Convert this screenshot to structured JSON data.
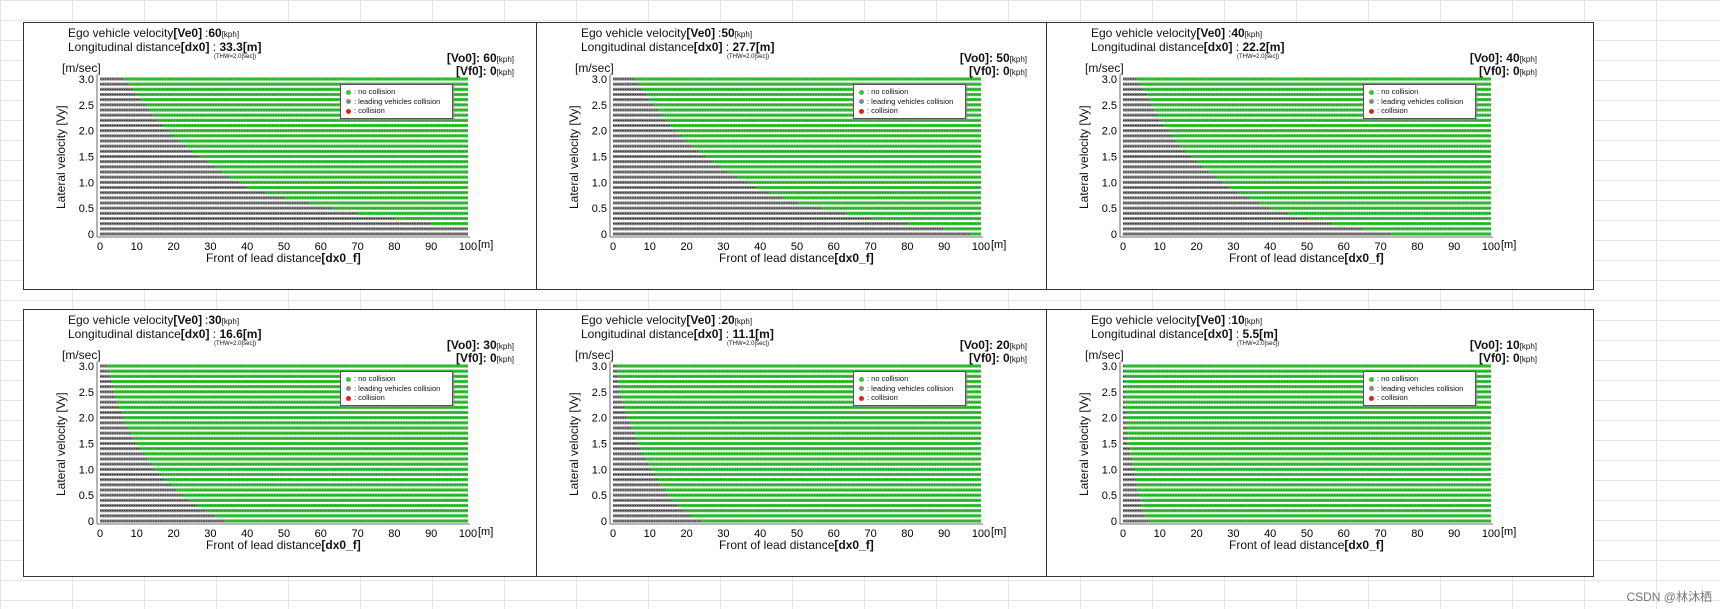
{
  "colors": {
    "no_collision": "#3cc43c",
    "leading": "#8a8a8a",
    "collision": "#d8261e",
    "row_shade": "#2b2b2b"
  },
  "labels": {
    "ego_velocity": "Ego vehicle velocity",
    "ego_key": "[Ve0]",
    "long_distance": "Longitudinal distance",
    "long_key": "[dx0]",
    "kph": "[kph]",
    "meter": "[m]",
    "thw": "(THW=2.0[sec])",
    "vo0_key": "[Vo0]",
    "vf0_key": "[Vf0]",
    "colon": ":",
    "y_unit": "[m/sec]",
    "y_axis": "Lateral velocity [Vy]",
    "x_axis": "Front of lead distance",
    "x_key": "[dx0_f]",
    "x_unit": "[m]",
    "legend_no": ": no collision",
    "legend_leading": ": leading vehicles collision",
    "legend_collision": ": collision"
  },
  "watermark": "CSDN @林沐栖",
  "chart_data": [
    {
      "type": "scatter",
      "ve0": "60",
      "dx0": "33.3",
      "vo0": "60",
      "vf0": "0",
      "xlim": [
        0,
        100
      ],
      "ylim": [
        0,
        3.0
      ],
      "xticks": [
        0,
        10,
        20,
        30,
        40,
        50,
        60,
        70,
        80,
        90,
        100
      ],
      "yticks": [
        "0",
        "0.5",
        "1.0",
        "1.5",
        "2.0",
        "2.5",
        "3.0"
      ],
      "boundary": [
        [
          6.5,
          3.0
        ],
        [
          10,
          2.7
        ],
        [
          15,
          2.25
        ],
        [
          20,
          1.9
        ],
        [
          25,
          1.6
        ],
        [
          30,
          1.35
        ],
        [
          35,
          1.1
        ],
        [
          40,
          0.9
        ],
        [
          50,
          0.7
        ],
        [
          60,
          0.55
        ],
        [
          70,
          0.4
        ],
        [
          80,
          0.3
        ],
        [
          90,
          0.2
        ],
        [
          100,
          0.2
        ]
      ]
    },
    {
      "type": "scatter",
      "ve0": "50",
      "dx0": "27.7",
      "vo0": "50",
      "vf0": "0",
      "xlim": [
        0,
        100
      ],
      "ylim": [
        0,
        3.0
      ],
      "xticks": [
        0,
        10,
        20,
        30,
        40,
        50,
        60,
        70,
        80,
        90,
        100
      ],
      "yticks": [
        "0",
        "0.5",
        "1.0",
        "1.5",
        "2.0",
        "2.5",
        "3.0"
      ],
      "boundary": [
        [
          6,
          3.0
        ],
        [
          10,
          2.6
        ],
        [
          15,
          2.15
        ],
        [
          20,
          1.8
        ],
        [
          25,
          1.5
        ],
        [
          30,
          1.25
        ],
        [
          35,
          1.05
        ],
        [
          40,
          0.85
        ],
        [
          50,
          0.6
        ],
        [
          60,
          0.45
        ],
        [
          70,
          0.3
        ],
        [
          80,
          0.2
        ],
        [
          90,
          0.1
        ],
        [
          97,
          0
        ]
      ]
    },
    {
      "type": "scatter",
      "ve0": "40",
      "dx0": "22.2",
      "vo0": "40",
      "vf0": "0",
      "xlim": [
        0,
        100
      ],
      "ylim": [
        0,
        3.0
      ],
      "xticks": [
        0,
        10,
        20,
        30,
        40,
        50,
        60,
        70,
        80,
        90,
        100
      ],
      "yticks": [
        "0",
        "0.5",
        "1.0",
        "1.5",
        "2.0",
        "2.5",
        "3.0"
      ],
      "boundary": [
        [
          4,
          3.0
        ],
        [
          7,
          2.6
        ],
        [
          10,
          2.2
        ],
        [
          15,
          1.75
        ],
        [
          20,
          1.4
        ],
        [
          25,
          1.1
        ],
        [
          30,
          0.85
        ],
        [
          40,
          0.5
        ],
        [
          50,
          0.3
        ],
        [
          60,
          0.15
        ],
        [
          70,
          0.05
        ],
        [
          73,
          0
        ]
      ]
    },
    {
      "type": "scatter",
      "ve0": "30",
      "dx0": "16.6",
      "vo0": "30",
      "vf0": "0",
      "xlim": [
        0,
        100
      ],
      "ylim": [
        0,
        3.0
      ],
      "xticks": [
        0,
        10,
        20,
        30,
        40,
        50,
        60,
        70,
        80,
        90,
        100
      ],
      "yticks": [
        "0",
        "0.5",
        "1.0",
        "1.5",
        "2.0",
        "2.5",
        "3.0"
      ],
      "boundary": [
        [
          2,
          3.0
        ],
        [
          3.5,
          2.6
        ],
        [
          5,
          2.2
        ],
        [
          7,
          1.85
        ],
        [
          10,
          1.5
        ],
        [
          15,
          1.0
        ],
        [
          20,
          0.65
        ],
        [
          25,
          0.35
        ],
        [
          30,
          0.15
        ],
        [
          34,
          0
        ]
      ]
    },
    {
      "type": "scatter",
      "ve0": "20",
      "dx0": "11.1",
      "vo0": "20",
      "vf0": "0",
      "xlim": [
        0,
        100
      ],
      "ylim": [
        0,
        3.0
      ],
      "xticks": [
        0,
        10,
        20,
        30,
        40,
        50,
        60,
        70,
        80,
        90,
        100
      ],
      "yticks": [
        "0",
        "0.5",
        "1.0",
        "1.5",
        "2.0",
        "2.5",
        "3.0"
      ],
      "boundary": [
        [
          1,
          3.0
        ],
        [
          1.5,
          2.6
        ],
        [
          3,
          2.2
        ],
        [
          5,
          1.8
        ],
        [
          7,
          1.45
        ],
        [
          10,
          1.05
        ],
        [
          13,
          0.7
        ],
        [
          16,
          0.4
        ],
        [
          20,
          0.15
        ],
        [
          24,
          0
        ]
      ]
    },
    {
      "type": "scatter",
      "ve0": "10",
      "dx0": "5.5",
      "vo0": "10",
      "vf0": "0",
      "xlim": [
        0,
        100
      ],
      "ylim": [
        0,
        3.0
      ],
      "xticks": [
        0,
        10,
        20,
        30,
        40,
        50,
        60,
        70,
        80,
        90,
        100
      ],
      "yticks": [
        "0",
        "0.5",
        "1.0",
        "1.5",
        "2.0",
        "2.5",
        "3.0"
      ],
      "boundary": [
        [
          0.5,
          3.0
        ],
        [
          0.7,
          2.4
        ],
        [
          1,
          1.6
        ],
        [
          2,
          1.3
        ],
        [
          3,
          1.0
        ],
        [
          4,
          0.6
        ],
        [
          5,
          0.3
        ],
        [
          6,
          0.1
        ],
        [
          7,
          0
        ]
      ]
    }
  ]
}
